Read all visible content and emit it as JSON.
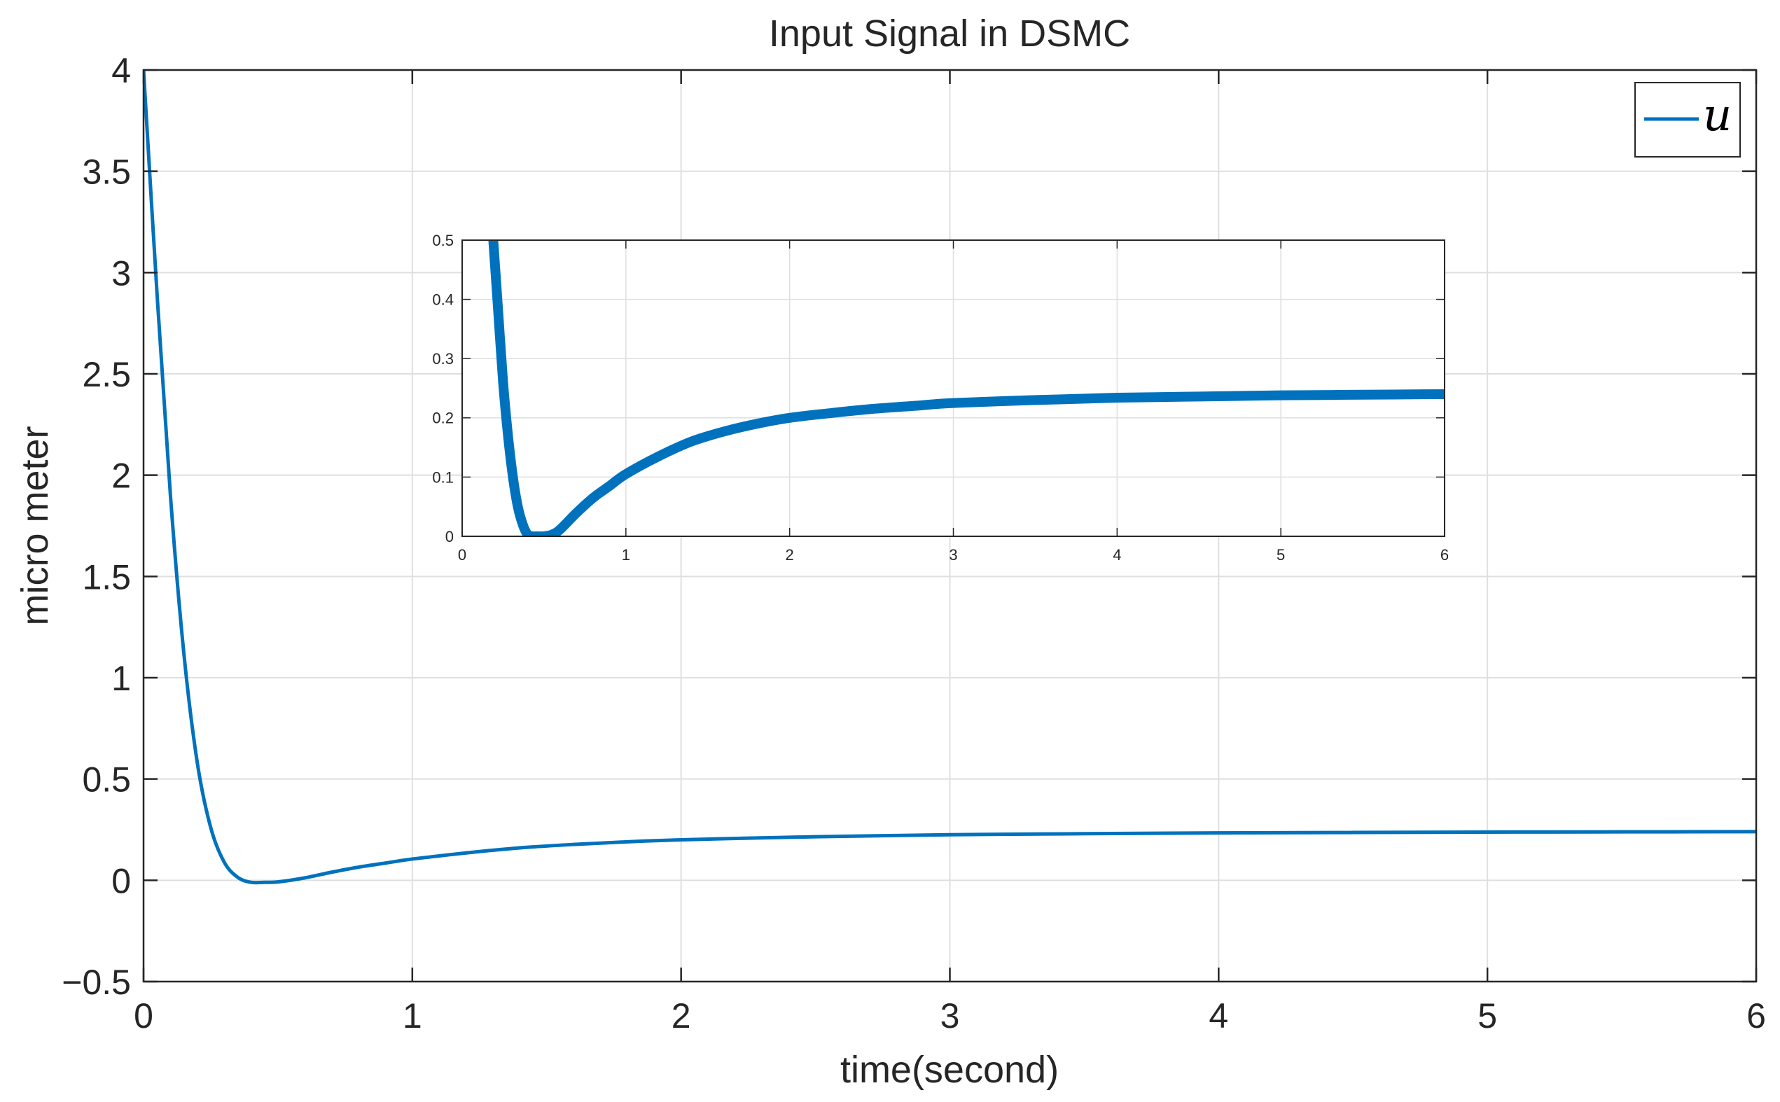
{
  "chart_data": [
    {
      "type": "line",
      "title": "Input Signal in DSMC",
      "xlabel": "time(second)",
      "ylabel": "micro meter",
      "xlim": [
        0,
        6
      ],
      "ylim": [
        -0.5,
        4
      ],
      "xticks": [
        0,
        1,
        2,
        3,
        4,
        5,
        6
      ],
      "yticks": [
        -0.5,
        0,
        0.5,
        1,
        1.5,
        2,
        2.5,
        3,
        3.5,
        4
      ],
      "xtick_labels": [
        "0",
        "1",
        "2",
        "3",
        "4",
        "5",
        "6"
      ],
      "ytick_labels": [
        "−0.5",
        "0",
        "0.5",
        "1",
        "1.5",
        "2",
        "2.5",
        "3",
        "3.5",
        "4"
      ],
      "grid": true,
      "legend_position": "top-right",
      "series": [
        {
          "name": "u",
          "color": "#0072BD",
          "x": [
            0,
            0.05,
            0.1,
            0.15,
            0.2,
            0.25,
            0.3,
            0.35,
            0.4,
            0.45,
            0.5,
            0.6,
            0.7,
            0.8,
            0.9,
            1.0,
            1.2,
            1.4,
            1.6,
            1.8,
            2.0,
            2.25,
            2.5,
            2.75,
            3.0,
            3.5,
            4.0,
            4.5,
            5.0,
            5.5,
            6.0
          ],
          "y": [
            4.0,
            2.9,
            1.9,
            1.12,
            0.58,
            0.26,
            0.09,
            0.015,
            -0.01,
            -0.01,
            -0.008,
            0.012,
            0.04,
            0.065,
            0.085,
            0.105,
            0.135,
            0.16,
            0.177,
            0.19,
            0.2,
            0.208,
            0.215,
            0.22,
            0.225,
            0.23,
            0.234,
            0.236,
            0.238,
            0.239,
            0.24
          ]
        }
      ]
    },
    {
      "type": "line",
      "title": "",
      "xlabel": "",
      "ylabel": "",
      "xlim": [
        0,
        6
      ],
      "ylim": [
        0,
        0.5
      ],
      "xticks": [
        0,
        1,
        2,
        3,
        4,
        5,
        6
      ],
      "yticks": [
        0,
        0.1,
        0.2,
        0.3,
        0.4,
        0.5
      ],
      "xtick_labels": [
        "0",
        "1",
        "2",
        "3",
        "4",
        "5",
        "6"
      ],
      "ytick_labels": [
        "0",
        "0.1",
        "0.2",
        "0.3",
        "0.4",
        "0.5"
      ],
      "grid": true,
      "series": [
        {
          "color": "#0072BD",
          "x": [
            0.19,
            0.22,
            0.25,
            0.28,
            0.31,
            0.34,
            0.37,
            0.4,
            0.43,
            0.46,
            0.5,
            0.55,
            0.6,
            0.7,
            0.8,
            0.9,
            1.0,
            1.2,
            1.4,
            1.6,
            1.8,
            2.0,
            2.25,
            2.5,
            2.75,
            3.0,
            3.5,
            4.0,
            4.5,
            5.0,
            5.5,
            6.0
          ],
          "y": [
            0.5,
            0.38,
            0.26,
            0.17,
            0.1,
            0.05,
            0.02,
            0.003,
            0.0,
            0.0,
            0.0,
            0.003,
            0.012,
            0.04,
            0.065,
            0.085,
            0.105,
            0.135,
            0.16,
            0.177,
            0.19,
            0.2,
            0.208,
            0.215,
            0.22,
            0.225,
            0.23,
            0.234,
            0.236,
            0.238,
            0.239,
            0.24
          ]
        }
      ]
    }
  ]
}
